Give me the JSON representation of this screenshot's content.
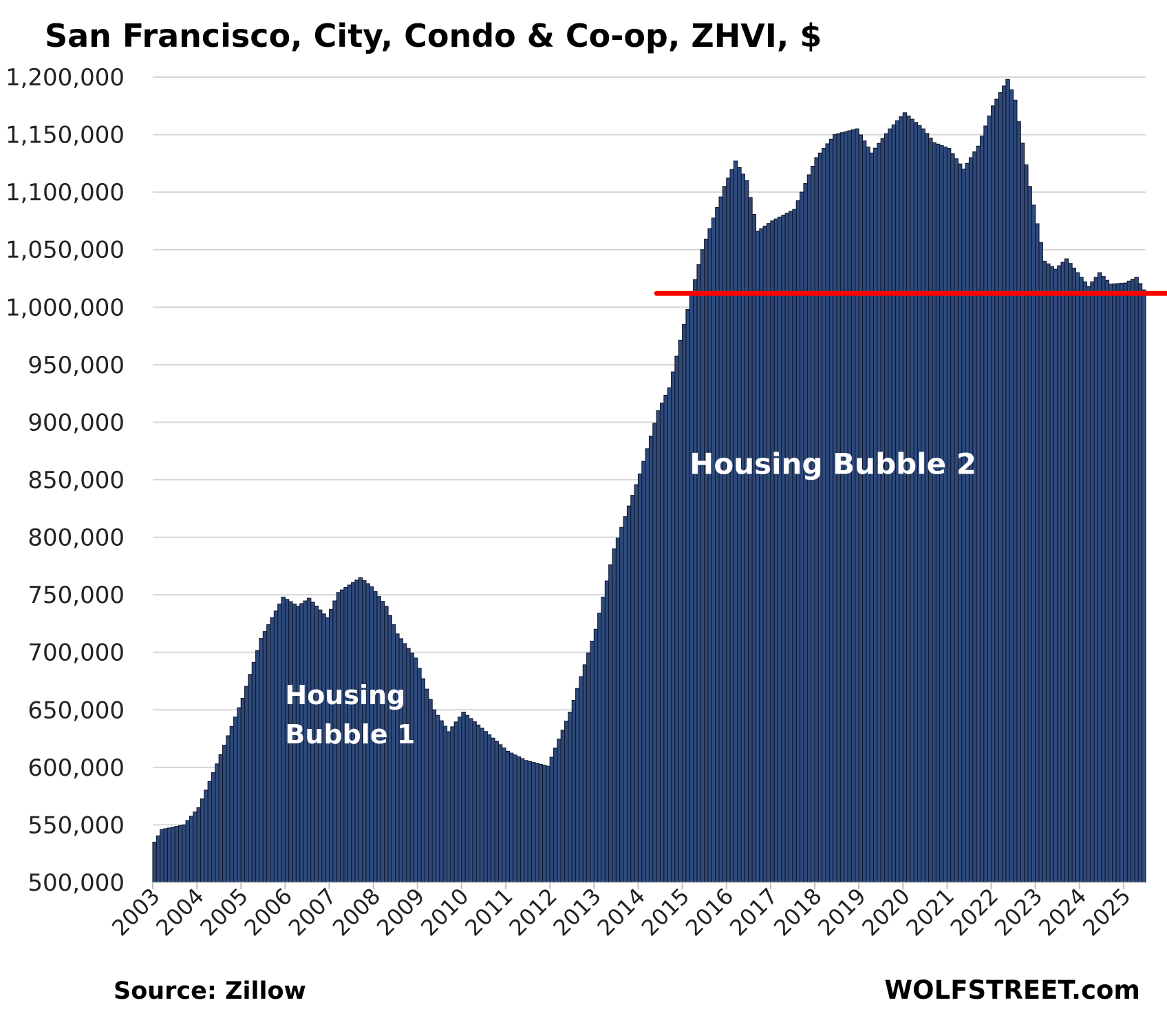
{
  "chart_data": {
    "type": "bar",
    "title": "San Francisco, City, Condo & Co-op, ZHVI, $",
    "xlabel": "",
    "ylabel": "",
    "ylim": [
      500000,
      1200000
    ],
    "yticks": [
      500000,
      550000,
      600000,
      650000,
      700000,
      750000,
      800000,
      850000,
      900000,
      950000,
      1000000,
      1050000,
      1100000,
      1150000,
      1200000
    ],
    "ytick_labels": [
      "500,000",
      "550,000",
      "600,000",
      "650,000",
      "700,000",
      "750,000",
      "800,000",
      "850,000",
      "900,000",
      "950,000",
      "1,000,000",
      "1,050,000",
      "1,100,000",
      "1,150,000",
      "1,200,000"
    ],
    "xticks": [
      "2003",
      "2004",
      "2005",
      "2006",
      "2007",
      "2008",
      "2009",
      "2010",
      "2011",
      "2012",
      "2013",
      "2014",
      "2015",
      "2016",
      "2017",
      "2018",
      "2019",
      "2020",
      "2021",
      "2022",
      "2023",
      "2024",
      "2025"
    ],
    "grid": true,
    "bar_color": "#2e4a7d",
    "bar_edge_color": "#10182b",
    "monthly": true,
    "start": "2003-01",
    "x_range": [
      "2003-01",
      "2025-06"
    ],
    "anchors": [
      {
        "date": "2003-01",
        "value": 535000
      },
      {
        "date": "2003-03",
        "value": 546000
      },
      {
        "date": "2003-06",
        "value": 548000
      },
      {
        "date": "2003-09",
        "value": 550000
      },
      {
        "date": "2004-01",
        "value": 565000
      },
      {
        "date": "2004-06",
        "value": 603000
      },
      {
        "date": "2005-01",
        "value": 660000
      },
      {
        "date": "2005-06",
        "value": 712000
      },
      {
        "date": "2005-12",
        "value": 748000
      },
      {
        "date": "2006-04",
        "value": 740000
      },
      {
        "date": "2006-07",
        "value": 747000
      },
      {
        "date": "2006-12",
        "value": 730000
      },
      {
        "date": "2007-03",
        "value": 752000
      },
      {
        "date": "2007-09",
        "value": 765000
      },
      {
        "date": "2007-12",
        "value": 757000
      },
      {
        "date": "2008-04",
        "value": 740000
      },
      {
        "date": "2008-07",
        "value": 716000
      },
      {
        "date": "2008-12",
        "value": 695000
      },
      {
        "date": "2009-05",
        "value": 650000
      },
      {
        "date": "2009-09",
        "value": 631000
      },
      {
        "date": "2010-01",
        "value": 648000
      },
      {
        "date": "2010-06",
        "value": 634000
      },
      {
        "date": "2011-01",
        "value": 614000
      },
      {
        "date": "2011-06",
        "value": 606000
      },
      {
        "date": "2011-12",
        "value": 601000
      },
      {
        "date": "2012-06",
        "value": 648000
      },
      {
        "date": "2013-01",
        "value": 720000
      },
      {
        "date": "2013-06",
        "value": 790000
      },
      {
        "date": "2014-01",
        "value": 855000
      },
      {
        "date": "2014-06",
        "value": 910000
      },
      {
        "date": "2014-09",
        "value": 930000
      },
      {
        "date": "2015-01",
        "value": 985000
      },
      {
        "date": "2015-06",
        "value": 1050000
      },
      {
        "date": "2015-12",
        "value": 1105000
      },
      {
        "date": "2016-03",
        "value": 1127000
      },
      {
        "date": "2016-06",
        "value": 1110000
      },
      {
        "date": "2016-09",
        "value": 1066000
      },
      {
        "date": "2017-01",
        "value": 1075000
      },
      {
        "date": "2017-07",
        "value": 1085000
      },
      {
        "date": "2018-01",
        "value": 1130000
      },
      {
        "date": "2018-06",
        "value": 1150000
      },
      {
        "date": "2018-12",
        "value": 1155000
      },
      {
        "date": "2019-04",
        "value": 1134000
      },
      {
        "date": "2019-09",
        "value": 1155000
      },
      {
        "date": "2020-01",
        "value": 1169000
      },
      {
        "date": "2020-06",
        "value": 1155000
      },
      {
        "date": "2020-09",
        "value": 1143000
      },
      {
        "date": "2021-01",
        "value": 1138000
      },
      {
        "date": "2021-05",
        "value": 1120000
      },
      {
        "date": "2021-09",
        "value": 1140000
      },
      {
        "date": "2022-01",
        "value": 1175000
      },
      {
        "date": "2022-05",
        "value": 1198000
      },
      {
        "date": "2022-07",
        "value": 1180000
      },
      {
        "date": "2022-11",
        "value": 1105000
      },
      {
        "date": "2023-03",
        "value": 1040000
      },
      {
        "date": "2023-06",
        "value": 1033000
      },
      {
        "date": "2023-09",
        "value": 1042000
      },
      {
        "date": "2023-12",
        "value": 1030000
      },
      {
        "date": "2024-03",
        "value": 1018000
      },
      {
        "date": "2024-06",
        "value": 1030000
      },
      {
        "date": "2024-09",
        "value": 1020000
      },
      {
        "date": "2025-01",
        "value": 1021000
      },
      {
        "date": "2025-04",
        "value": 1026000
      },
      {
        "date": "2025-06",
        "value": 1015000
      }
    ],
    "reference_line": {
      "value": 1012000,
      "from": "2014-06",
      "color": "#ff0000"
    },
    "annotations": [
      {
        "text": "Housing Bubble 2",
        "date": "2015-03",
        "value": 855000
      },
      {
        "text": "Housing",
        "date": "2006-01",
        "value": 655000
      },
      {
        "text": "Bubble 1",
        "date": "2006-01",
        "value": 621000
      }
    ]
  },
  "footer": {
    "source": "Source: Zillow",
    "brand": "WOLFSTREET.com"
  }
}
